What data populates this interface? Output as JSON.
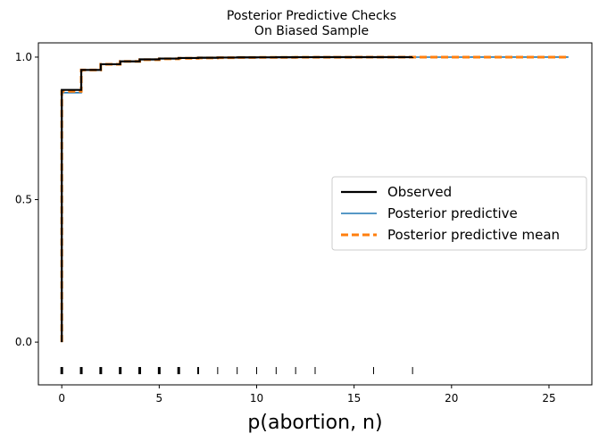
{
  "chart_data": {
    "type": "step",
    "title": "Posterior Predictive Checks",
    "subtitle": "On Biased Sample",
    "xlabel": "p(abortion, n)",
    "ylabel": "",
    "xlim": [
      -1.2,
      27.2
    ],
    "ylim": [
      -0.15,
      1.05
    ],
    "xticks": [
      0,
      5,
      10,
      15,
      20,
      25
    ],
    "yticks": [
      0.0,
      0.5,
      1.0
    ],
    "ytick_labels": [
      "0.0",
      "0.5",
      "1.0"
    ],
    "grid": false,
    "legend_position": "center-right",
    "series": [
      {
        "name": "Observed",
        "color": "#000000",
        "style": "solid",
        "x": [
          0,
          1,
          2,
          3,
          4,
          5,
          6,
          7,
          8,
          9,
          10,
          11,
          12,
          13,
          16,
          18
        ],
        "y": [
          0.885,
          0.955,
          0.975,
          0.985,
          0.992,
          0.995,
          0.997,
          0.998,
          0.9985,
          0.999,
          0.9993,
          0.9995,
          0.9997,
          0.9998,
          0.9999,
          1.0
        ]
      },
      {
        "name": "Posterior predictive",
        "color": "#1f77b4",
        "style": "solid",
        "x": [
          0,
          1,
          2,
          3,
          4,
          5,
          6,
          7,
          8,
          9,
          10,
          11,
          12,
          13,
          14,
          15,
          16,
          17,
          18,
          19,
          20,
          21,
          22,
          23,
          24,
          25,
          26
        ],
        "y": [
          0.875,
          0.955,
          0.975,
          0.985,
          0.991,
          0.994,
          0.996,
          0.997,
          0.998,
          0.9985,
          0.999,
          0.9992,
          0.9994,
          0.9995,
          0.9996,
          0.9997,
          0.9998,
          0.9998,
          0.9999,
          0.9999,
          0.9999,
          1.0,
          1.0,
          1.0,
          1.0,
          1.0,
          1.0
        ]
      },
      {
        "name": "Posterior predictive mean",
        "color": "#ff7f0e",
        "style": "dashed",
        "x": [
          0,
          1,
          2,
          3,
          4,
          5,
          6,
          7,
          8,
          9,
          10,
          11,
          12,
          13,
          14,
          15,
          16,
          17,
          18,
          19,
          20,
          21,
          22,
          23,
          24,
          25,
          26
        ],
        "y": [
          0.88,
          0.955,
          0.975,
          0.985,
          0.991,
          0.994,
          0.996,
          0.997,
          0.998,
          0.9985,
          0.999,
          0.9992,
          0.9994,
          0.9995,
          0.9996,
          0.9997,
          0.9998,
          0.9998,
          0.9999,
          0.9999,
          0.9999,
          1.0,
          1.0,
          1.0,
          1.0,
          1.0,
          1.0
        ]
      }
    ],
    "observation_ticks": {
      "y": -0.1,
      "x": [
        0,
        1,
        2,
        3,
        4,
        5,
        6,
        7,
        8,
        9,
        10,
        11,
        12,
        13,
        16,
        18
      ],
      "weight": [
        3,
        3,
        3,
        3,
        3,
        3,
        3,
        2,
        1,
        1,
        1,
        1,
        1,
        1,
        1,
        1
      ]
    }
  }
}
